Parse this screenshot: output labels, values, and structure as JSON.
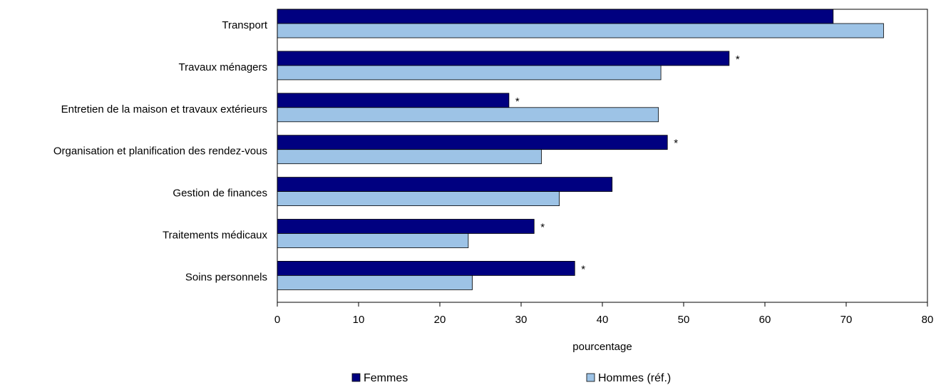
{
  "chart_data": {
    "type": "bar",
    "orientation": "horizontal",
    "categories": [
      "Transport",
      "Travaux ménagers",
      "Entretien de la maison et travaux extérieurs",
      "Organisation et planification des rendez-vous",
      "Gestion de finances",
      "Traitements médicaux",
      "Soins personnels"
    ],
    "series": [
      {
        "name": "Femmes",
        "color": "#000080",
        "values": [
          68.4,
          55.6,
          28.5,
          48.0,
          41.2,
          31.6,
          36.6
        ],
        "significance": [
          "",
          "*",
          "*",
          "*",
          "",
          "*",
          "*"
        ]
      },
      {
        "name": "Hommes (réf.)",
        "color": "#9dc3e6",
        "values": [
          74.6,
          47.2,
          46.9,
          32.5,
          34.7,
          23.5,
          24.0
        ]
      }
    ],
    "xlabel": "pourcentage",
    "ylabel": "",
    "xlim": [
      0,
      80
    ],
    "xticks": [
      0,
      10,
      20,
      30,
      40,
      50,
      60,
      70,
      80
    ],
    "grid": false,
    "legend_position": "bottom"
  }
}
